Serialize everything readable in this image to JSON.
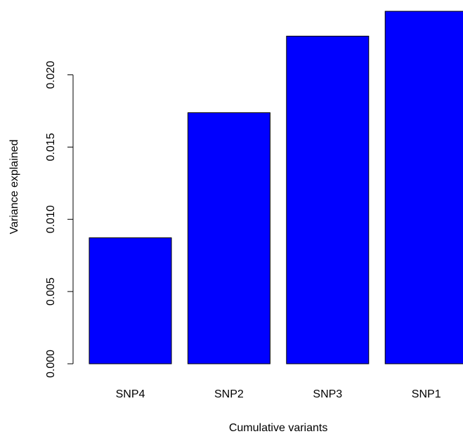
{
  "chart_data": {
    "type": "bar",
    "title": "",
    "xlabel": "Cumulative variants",
    "ylabel": "Variance explained",
    "categories": [
      "SNP4",
      "SNP2",
      "SNP3",
      "SNP1"
    ],
    "values": [
      0.00872,
      0.01738,
      0.02268,
      0.0244
    ],
    "ylim": [
      0,
      0.0245
    ],
    "yticks": [
      "0.000",
      "0.005",
      "0.010",
      "0.015",
      "0.020"
    ],
    "ytick_values": [
      0,
      0.005,
      0.01,
      0.015,
      0.02
    ],
    "grid": false,
    "legend": "none",
    "colors": {
      "bar_fill": "#0000ff",
      "bar_stroke": "#000000",
      "axis": "#000000",
      "background": "#ffffff"
    }
  }
}
